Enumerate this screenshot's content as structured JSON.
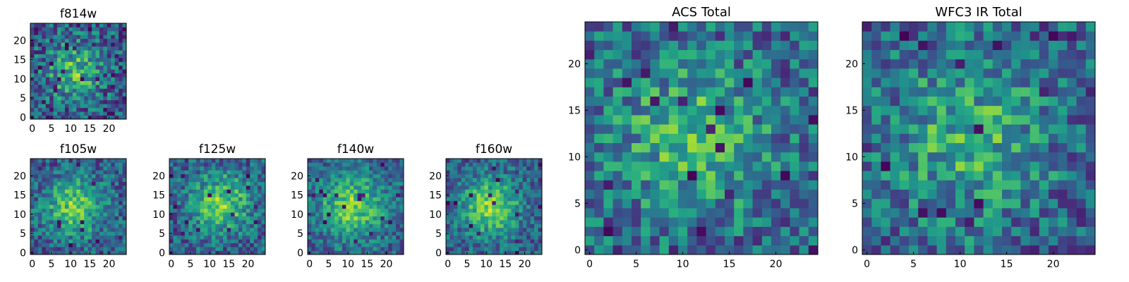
{
  "figure": {
    "colormap": "viridis",
    "colors": {
      "low": "#440154",
      "mid_low": "#31688e",
      "mid": "#35b779",
      "high": "#fde725",
      "axis": "#000000",
      "background": "#ffffff"
    }
  },
  "chart_data": [
    {
      "id": "f814w",
      "type": "heatmap",
      "title": "f814w",
      "grid_size": 25,
      "x_ticks": [
        "0",
        "5",
        "10",
        "15",
        "20"
      ],
      "y_ticks": [
        "0",
        "5",
        "10",
        "15",
        "20"
      ],
      "xlim": [
        0,
        24
      ],
      "ylim": [
        0,
        24
      ],
      "center": [
        11,
        12
      ],
      "peak": 0.72,
      "spread": 5.0,
      "noise": 0.28,
      "base": 0.48,
      "seed": 3
    },
    {
      "id": "f105w",
      "type": "heatmap",
      "title": "f105w",
      "grid_size": 25,
      "x_ticks": [
        "0",
        "5",
        "10",
        "15",
        "20"
      ],
      "y_ticks": [
        "0",
        "5",
        "10",
        "15",
        "20"
      ],
      "xlim": [
        0,
        24
      ],
      "ylim": [
        0,
        24
      ],
      "center": [
        11,
        12
      ],
      "peak": 0.85,
      "spread": 5.5,
      "noise": 0.22,
      "base": 0.48,
      "seed": 11
    },
    {
      "id": "f125w",
      "type": "heatmap",
      "title": "f125w",
      "grid_size": 25,
      "x_ticks": [
        "0",
        "5",
        "10",
        "15",
        "20"
      ],
      "y_ticks": [
        "0",
        "5",
        "10",
        "15",
        "20"
      ],
      "xlim": [
        0,
        24
      ],
      "ylim": [
        0,
        24
      ],
      "center": [
        13,
        13
      ],
      "peak": 0.85,
      "spread": 5.5,
      "noise": 0.22,
      "base": 0.5,
      "seed": 17
    },
    {
      "id": "f140w",
      "type": "heatmap",
      "title": "f140w",
      "grid_size": 25,
      "x_ticks": [
        "0",
        "5",
        "10",
        "15",
        "20"
      ],
      "y_ticks": [
        "0",
        "5",
        "10",
        "15",
        "20"
      ],
      "xlim": [
        0,
        24
      ],
      "ylim": [
        0,
        24
      ],
      "center": [
        11,
        12
      ],
      "peak": 0.85,
      "spread": 6.0,
      "noise": 0.2,
      "base": 0.52,
      "seed": 23
    },
    {
      "id": "f160w",
      "type": "heatmap",
      "title": "f160w",
      "grid_size": 25,
      "x_ticks": [
        "0",
        "5",
        "10",
        "15",
        "20"
      ],
      "y_ticks": [
        "0",
        "5",
        "10",
        "15",
        "20"
      ],
      "xlim": [
        0,
        24
      ],
      "ylim": [
        0,
        24
      ],
      "center": [
        11,
        12
      ],
      "peak": 0.9,
      "spread": 5.5,
      "noise": 0.2,
      "base": 0.5,
      "seed": 29
    },
    {
      "id": "acs_total",
      "type": "heatmap",
      "title": "ACS Total",
      "grid_size": 25,
      "x_ticks": [
        "0",
        "5",
        "10",
        "15",
        "20"
      ],
      "y_ticks": [
        "0",
        "5",
        "10",
        "15",
        "20"
      ],
      "xlim": [
        0,
        24
      ],
      "ylim": [
        0,
        24
      ],
      "center": [
        11,
        12
      ],
      "peak": 0.6,
      "spread": 6.0,
      "noise": 0.26,
      "base": 0.55,
      "seed": 41
    },
    {
      "id": "wfc3_ir_total",
      "type": "heatmap",
      "title": "WFC3 IR Total",
      "grid_size": 25,
      "x_ticks": [
        "0",
        "5",
        "10",
        "15",
        "20"
      ],
      "y_ticks": [
        "0",
        "5",
        "10",
        "15",
        "20"
      ],
      "xlim": [
        0,
        24
      ],
      "ylim": [
        0,
        24
      ],
      "center": [
        11,
        12
      ],
      "peak": 0.55,
      "spread": 6.0,
      "noise": 0.26,
      "base": 0.55,
      "seed": 53
    }
  ]
}
